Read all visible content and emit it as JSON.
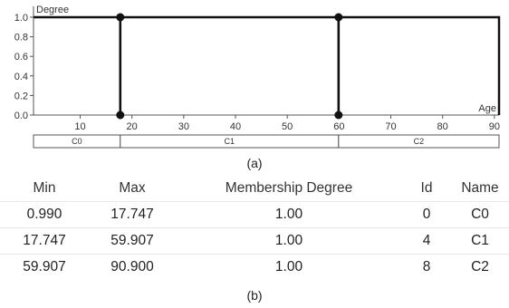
{
  "chart_data": {
    "type": "line",
    "ylabel": "Degree",
    "xlabel": "Age",
    "xlim": [
      0.99,
      90.9
    ],
    "ylim": [
      0,
      1.0
    ],
    "x_ticks": [
      10,
      20,
      30,
      40,
      50,
      60,
      70,
      80,
      90
    ],
    "y_ticks": [
      "0.0",
      "0.2",
      "0.4",
      "0.6",
      "0.8",
      "1.0"
    ],
    "grid": false,
    "series": [
      {
        "points": [
          [
            0.99,
            1.0
          ],
          [
            17.747,
            1.0
          ],
          [
            17.747,
            0.0
          ]
        ]
      },
      {
        "points": [
          [
            17.747,
            0.0
          ],
          [
            17.747,
            1.0
          ],
          [
            59.907,
            1.0
          ],
          [
            59.907,
            0.0
          ]
        ]
      },
      {
        "points": [
          [
            59.907,
            0.0
          ],
          [
            59.907,
            1.0
          ],
          [
            90.9,
            1.0
          ],
          [
            90.9,
            0.0
          ]
        ]
      }
    ],
    "markers": [
      [
        17.747,
        1.0
      ],
      [
        17.747,
        0.0
      ],
      [
        59.907,
        1.0
      ],
      [
        59.907,
        0.0
      ]
    ],
    "bins": [
      {
        "label": "C0",
        "from": 0.99,
        "to": 17.747
      },
      {
        "label": "C1",
        "from": 17.747,
        "to": 59.907
      },
      {
        "label": "C2",
        "from": 59.907,
        "to": 90.9
      }
    ]
  },
  "caption_a": "(a)",
  "caption_b": "(b)",
  "table": {
    "headers": [
      "Min",
      "Max",
      "Membership Degree",
      "Id",
      "Name"
    ],
    "rows": [
      [
        "0.990",
        "17.747",
        "1.00",
        "0",
        "C0"
      ],
      [
        "17.747",
        "59.907",
        "1.00",
        "4",
        "C1"
      ],
      [
        "59.907",
        "90.900",
        "1.00",
        "8",
        "C2"
      ]
    ]
  }
}
